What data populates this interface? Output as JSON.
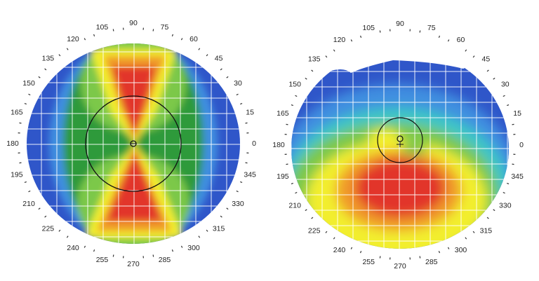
{
  "maps": [
    {
      "id": "left",
      "pattern": "bowtie",
      "degree_labels": [
        "0",
        "15",
        "30",
        "45",
        "60",
        "75",
        "90",
        "105",
        "120",
        "135",
        "150",
        "165",
        "180",
        "195",
        "210",
        "225",
        "240",
        "255",
        "270",
        "285",
        "300",
        "315",
        "330",
        "345"
      ]
    },
    {
      "id": "right",
      "pattern": "inferior-steepening",
      "degree_labels": [
        "0",
        "15",
        "30",
        "45",
        "60",
        "75",
        "90",
        "105",
        "120",
        "135",
        "150",
        "165",
        "180",
        "195",
        "210",
        "225",
        "240",
        "255",
        "270",
        "285",
        "300",
        "315",
        "330",
        "345"
      ]
    }
  ],
  "colors": {
    "blue": "#2f56c9",
    "light_blue": "#3f8fe0",
    "cyan": "#3cc6c6",
    "green": "#2f9a3a",
    "light_green": "#7cc84a",
    "yellow": "#f2ee2e",
    "orange": "#f09a2c",
    "red": "#e2342b",
    "grid": "#ffffff",
    "circle": "#111111"
  }
}
